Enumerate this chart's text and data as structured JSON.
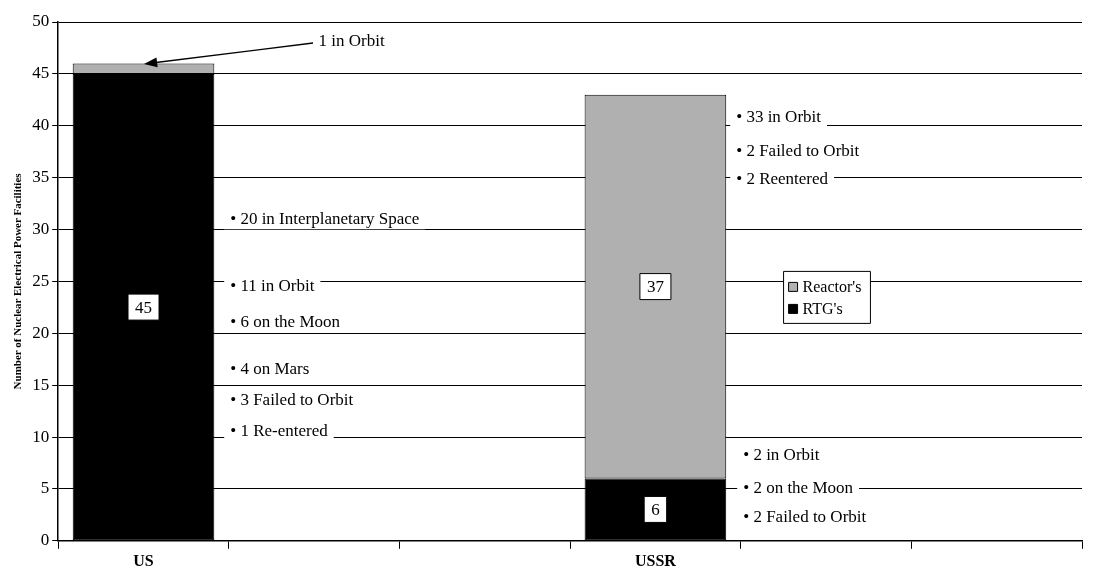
{
  "chart_data": {
    "type": "bar",
    "stacked": true,
    "ylabel": "Number of Nuclear Electrical Power Facilities",
    "categories": [
      "US",
      null,
      null,
      "USSR",
      null,
      null
    ],
    "series": [
      {
        "name": "RTG's",
        "color": "#000000",
        "values": [
          45,
          null,
          null,
          6,
          null,
          null
        ],
        "value_labels": [
          "45",
          null,
          null,
          "6",
          null,
          null
        ]
      },
      {
        "name": "Reactor's",
        "color": "#b0b0b0",
        "values": [
          1,
          null,
          null,
          37,
          null,
          null
        ],
        "value_labels": [
          null,
          null,
          null,
          "37",
          null,
          null
        ]
      }
    ],
    "ylim": [
      0,
      50
    ],
    "yticks": [
      0,
      5,
      10,
      15,
      20,
      25,
      30,
      35,
      40,
      45,
      50
    ],
    "grid": "y",
    "legend": "right",
    "annotations": [
      {
        "text": "1 in Orbit",
        "x": "US",
        "y": 46
      },
      "• 20 in Interplanetary Space",
      "• 11 in Orbit",
      "• 6 on the Moon",
      "• 4 on Mars",
      "• 3 Failed to Orbit",
      "• 1 Re-entered",
      "• 33 in Orbit",
      "• 2 Failed to Orbit",
      "• 2 Reentered",
      "• 2 in Orbit",
      "• 2 on the Moon",
      "• 2 Failed to Orbit"
    ]
  }
}
